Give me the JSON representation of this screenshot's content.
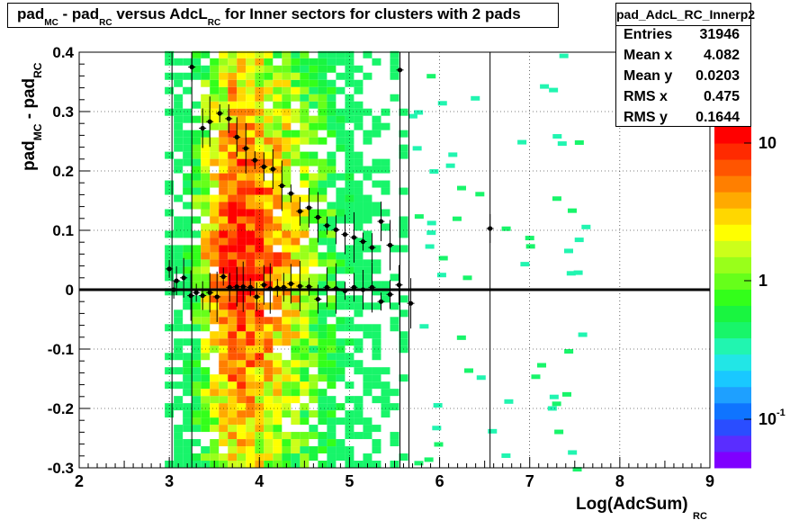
{
  "title": {
    "parts": [
      {
        "text": "pad",
        "sub": "MC"
      },
      {
        "text": " - pad",
        "sub": "RC"
      },
      {
        "text": " versus AdcL",
        "sub": "RC"
      },
      {
        "text": " for Inner sectors for clusters with 2 pads",
        "sub": ""
      }
    ]
  },
  "stats": {
    "name": "pad_AdcL_RC_Innerp2",
    "rows": [
      {
        "label": "Entries",
        "value": "31946"
      },
      {
        "label": "Mean x",
        "value": "4.082"
      },
      {
        "label": "Mean y",
        "value": "0.0203"
      },
      {
        "label": "RMS x",
        "value": "0.475"
      },
      {
        "label": "RMS y",
        "value": "0.1644"
      }
    ]
  },
  "chart_data": {
    "type": "heatmap",
    "title": "pad_MC - pad_RC versus AdcL_RC for Inner sectors for clusters with 2 pads",
    "xlabel": "Log(AdcSum)",
    "xlabel_sub": "RC",
    "ylabel": "pad",
    "ylabel_sub1": "MC",
    "ylabel_mid": " - pad",
    "ylabel_sub2": "RC",
    "xlim": [
      2,
      9
    ],
    "ylim": [
      -0.3,
      0.4
    ],
    "x_ticks": [
      "2",
      "3",
      "4",
      "5",
      "6",
      "7",
      "8",
      "9"
    ],
    "y_ticks": [
      "-0.3",
      "-0.2",
      "-0.1",
      "0",
      "0.1",
      "0.2",
      "0.3",
      "0.4"
    ],
    "grid": true,
    "z_scale": "log",
    "colorbar_labels": [
      "10",
      "1",
      "10"
    ],
    "colorbar_label_sup": [
      "",
      "",
      "-1"
    ],
    "colorbar_colors": [
      "#7f00ff",
      "#5a2dff",
      "#2a4dff",
      "#0f74ff",
      "#1ea0ff",
      "#19c8ff",
      "#22e6e6",
      "#21f5b0",
      "#18f56a",
      "#19f540",
      "#33ff1a",
      "#66ff1a",
      "#99ff1a",
      "#ccff1a",
      "#ffff00",
      "#ffd700",
      "#ffaa00",
      "#ff7f00",
      "#ff5500",
      "#ff2a00",
      "#ff0000"
    ],
    "reference_line_y": 0,
    "profile_lower_x": [
      3.0,
      3.08,
      3.16,
      3.24,
      3.3,
      3.37,
      3.45,
      3.53,
      3.6,
      3.67,
      3.75,
      3.82,
      3.9,
      3.97,
      4.05,
      4.12,
      4.2,
      4.27,
      4.35,
      4.45,
      4.55,
      4.65,
      4.75,
      4.85,
      4.95,
      5.05,
      5.15,
      5.25,
      5.35,
      5.45,
      5.55,
      5.68
    ],
    "profile_lower_y": [
      0.035,
      0.015,
      0.02,
      -0.01,
      -0.005,
      -0.01,
      -0.005,
      -0.012,
      0.022,
      0.004,
      0.005,
      0.005,
      0.004,
      -0.012,
      0.008,
      0.002,
      0.003,
      0.004,
      0.01,
      0.006,
      0.005,
      -0.016,
      0.004,
      0.002,
      -0.002,
      0.004,
      0.0,
      0.004,
      -0.02,
      -0.008,
      0.008,
      -0.023
    ],
    "profile_upper_x": [
      3.05,
      3.25,
      3.37,
      3.45,
      3.56,
      3.66,
      3.75,
      3.85,
      3.95,
      4.05,
      4.15,
      4.25,
      4.35,
      4.45,
      4.55,
      4.65,
      4.75,
      4.85,
      4.95,
      5.05,
      5.15,
      5.25,
      5.35,
      5.45,
      5.56,
      6.56
    ],
    "profile_upper_y": [
      0.0,
      0.375,
      0.272,
      0.283,
      0.297,
      0.288,
      0.257,
      0.238,
      0.218,
      0.207,
      0.203,
      0.175,
      0.162,
      0.132,
      0.138,
      0.122,
      0.108,
      0.101,
      0.093,
      0.088,
      0.081,
      0.071,
      0.115,
      0.075,
      0.37,
      0.103
    ],
    "heat_columns_x": [
      3.0,
      3.1,
      3.2,
      3.3,
      3.4,
      3.5,
      3.6,
      3.7,
      3.8,
      3.9,
      4.0,
      4.1,
      4.2,
      4.3,
      4.4,
      4.5,
      4.6,
      4.7,
      4.8,
      4.9,
      5.0,
      5.1,
      5.2,
      5.3,
      5.4,
      5.5,
      5.6
    ],
    "heat_columns_level": [
      0.15,
      0.25,
      0.4,
      0.55,
      0.7,
      0.82,
      0.92,
      1.0,
      1.0,
      0.98,
      0.95,
      0.9,
      0.85,
      0.8,
      0.75,
      0.68,
      0.62,
      0.55,
      0.48,
      0.4,
      0.33,
      0.26,
      0.2,
      0.15,
      0.1,
      0.07,
      0.05
    ]
  }
}
